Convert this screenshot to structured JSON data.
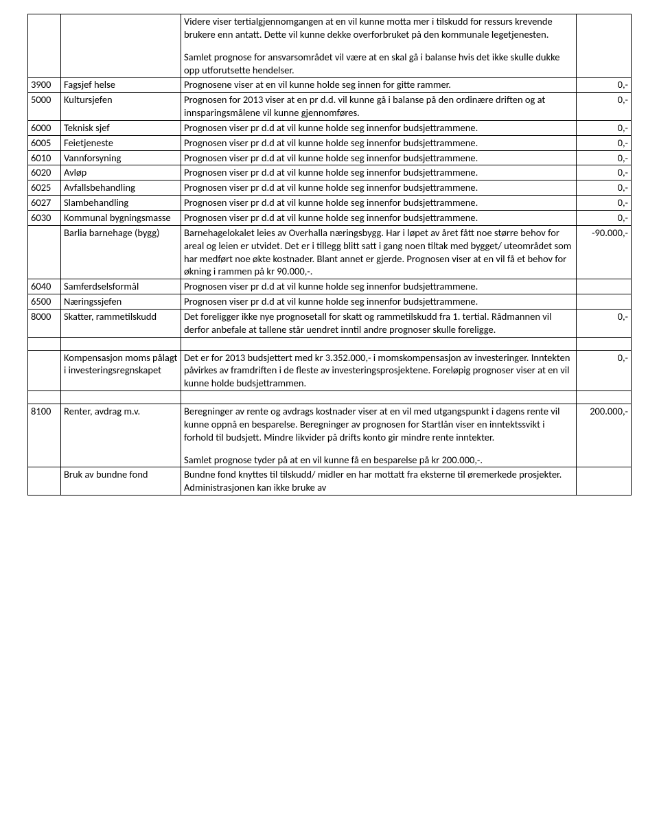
{
  "table": {
    "col_widths": {
      "code": 48,
      "name": 175,
      "val": 80
    },
    "rows": [
      {
        "code": "",
        "name": "",
        "desc_paragraphs": [
          "Videre viser tertialgjennomgangen at en vil kunne motta mer i tilskudd for ressurs krevende brukere enn antatt. Dette vil kunne dekke overforbruket på den kommunale legetjenesten.",
          "Samlet prognose for ansvarsområdet vil være at en skal gå i balanse hvis det ikke skulle dukke opp utforutsette hendelser."
        ],
        "val": ""
      },
      {
        "code": "3900",
        "name": "Fagsjef helse",
        "desc_paragraphs": [
          "Prognosene viser at en vil kunne holde seg innen for gitte rammer."
        ],
        "val": "0,-"
      },
      {
        "code": "5000",
        "name": "Kultursjefen",
        "desc_paragraphs": [
          "Prognosen for 2013 viser at en pr d.d. vil kunne gå i balanse på den ordinære driften og at innsparingsmålene vil kunne gjennomføres."
        ],
        "val": "0,-"
      },
      {
        "code": "6000",
        "name": "Teknisk sjef",
        "desc_paragraphs": [
          "Prognosen viser pr d.d at vil kunne holde seg innenfor budsjettrammene."
        ],
        "val": "0,-"
      },
      {
        "code": "6005",
        "name": "Feietjeneste",
        "desc_paragraphs": [
          "Prognosen viser pr d.d at vil kunne holde seg innenfor budsjettrammene."
        ],
        "val": "0,-"
      },
      {
        "code": "6010",
        "name": "Vannforsyning",
        "desc_paragraphs": [
          "Prognosen viser pr d.d at vil kunne holde seg innenfor budsjettrammene."
        ],
        "val": "0,-"
      },
      {
        "code": "6020",
        "name": "Avløp",
        "desc_paragraphs": [
          "Prognosen viser pr d.d at vil kunne holde seg innenfor budsjettrammene."
        ],
        "val": "0,-"
      },
      {
        "code": "6025",
        "name": "Avfallsbehandling",
        "desc_paragraphs": [
          "Prognosen viser pr d.d at vil kunne holde seg innenfor budsjettrammene."
        ],
        "val": "0,-"
      },
      {
        "code": "6027",
        "name": "Slambehandling",
        "desc_paragraphs": [
          "Prognosen viser pr d.d at vil kunne holde seg innenfor budsjettrammene."
        ],
        "val": "0,-"
      },
      {
        "code": "6030",
        "name": "Kommunal bygningsmasse",
        "desc_paragraphs": [
          "Prognosen viser pr d.d at vil kunne holde seg innenfor budsjettrammene."
        ],
        "val": "0,-"
      },
      {
        "code": "",
        "name": "Barlia barnehage (bygg)",
        "desc_paragraphs": [
          "Barnehagelokalet leies av Overhalla næringsbygg. Har i løpet av året fått noe større behov for areal og leien er utvidet. Det er i tillegg blitt satt i gang noen tiltak med bygget/ uteområdet som har medført noe økte kostnader. Blant annet er gjerde. Prognosen viser at en vil få et behov for økning i rammen på kr 90.000,-."
        ],
        "val": "-90.000,-"
      },
      {
        "code": "6040",
        "name": "Samferdselsformål",
        "desc_paragraphs": [
          "Prognosen viser pr d.d at vil kunne holde seg innenfor budsjettrammene."
        ],
        "val": ""
      },
      {
        "code": "6500",
        "name": "Næringssjefen",
        "desc_paragraphs": [
          "Prognosen viser pr d.d at vil kunne holde seg innenfor budsjettrammene."
        ],
        "val": ""
      },
      {
        "code": "8000",
        "name": "Skatter, rammetilskudd",
        "desc_paragraphs": [
          "Det foreligger ikke nye prognosetall for skatt og rammetilskudd fra 1. tertial. Rådmannen vil derfor anbefale at tallene står uendret inntil andre prognoser skulle foreligge."
        ],
        "val": "0,-"
      },
      {
        "blank": true
      },
      {
        "code": "",
        "name": "Kompensasjon moms pålagt i investeringsregnskapet",
        "desc_paragraphs": [
          "Det er for 2013 budsjettert med kr 3.352.000,- i momskompensasjon av investeringer. Inntekten påvirkes av framdriften i de fleste av investeringsprosjektene. Foreløpig prognoser viser at en vil kunne holde budsjettrammen."
        ],
        "val": "0,-"
      },
      {
        "blank": true
      },
      {
        "code": "8100",
        "name": "Renter, avdrag m.v.",
        "desc_paragraphs": [
          "Beregninger av rente og avdrags kostnader viser at en vil med utgangspunkt i dagens rente vil kunne oppnå en besparelse. Beregninger av prognosen for Startlån viser en inntektssvikt i forhold til budsjett. Mindre likvider på drifts konto gir mindre rente inntekter.",
          "Samlet prognose tyder på at en vil kunne få en besparelse på kr 200.000,-."
        ],
        "val": "200.000,-"
      },
      {
        "code": "",
        "name": "Bruk av bundne fond",
        "desc_paragraphs": [
          "Bundne fond knyttes til tilskudd/ midler en har mottatt fra eksterne til øremerkede prosjekter. Administrasjonen kan ikke bruke av"
        ],
        "val": ""
      }
    ]
  }
}
